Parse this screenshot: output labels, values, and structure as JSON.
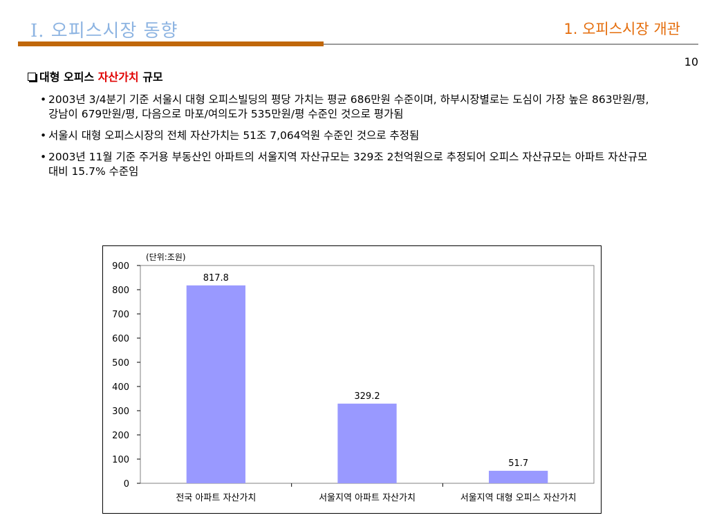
{
  "header": {
    "section_title": "I. 오피스시장 동향",
    "subsection_title": "1. 오피스시장 개관",
    "page_number": "10"
  },
  "heading": {
    "prefix": "대형 오피스 ",
    "highlight": "자산가치",
    "suffix": " 규모",
    "highlight_color": "#e00000"
  },
  "bullets": [
    "2003년 3/4분기 기준 서울시 대형 오피스빌딩의 평당 가치는 평균 686만원 수준이며, 하부시장별로는 도심이 가장 높은 863만원/평, 강남이 679만원/평, 다음으로 마포/여의도가 535만원/평 수준인 것으로 평가됨",
    "서울시 대형 오피스시장의 전체 자산가치는 51조 7,064억원 수준인 것으로 추정됨",
    "2003년 11월 기준 주거용 부동산인 아파트의 서울지역 자산규모는 329조 2천억원으로 추정되어 오피스 자산규모는 아파트 자산규모 대비 15.7% 수준임"
  ],
  "chart_data": {
    "type": "bar",
    "unit_label": "(단위:조원)",
    "categories": [
      "전국 아파트 자산가치",
      "서울지역 아파트 자산가치",
      "서울지역 대형 오피스 자산가치"
    ],
    "values": [
      817.8,
      329.2,
      51.7
    ],
    "data_labels": [
      "817.8",
      "329.2",
      "51.7"
    ],
    "ylim": [
      0,
      900
    ],
    "yticks": [
      0,
      100,
      200,
      300,
      400,
      500,
      600,
      700,
      800,
      900
    ],
    "grid": false,
    "bar_color": "#9999ff",
    "legend": "none"
  }
}
